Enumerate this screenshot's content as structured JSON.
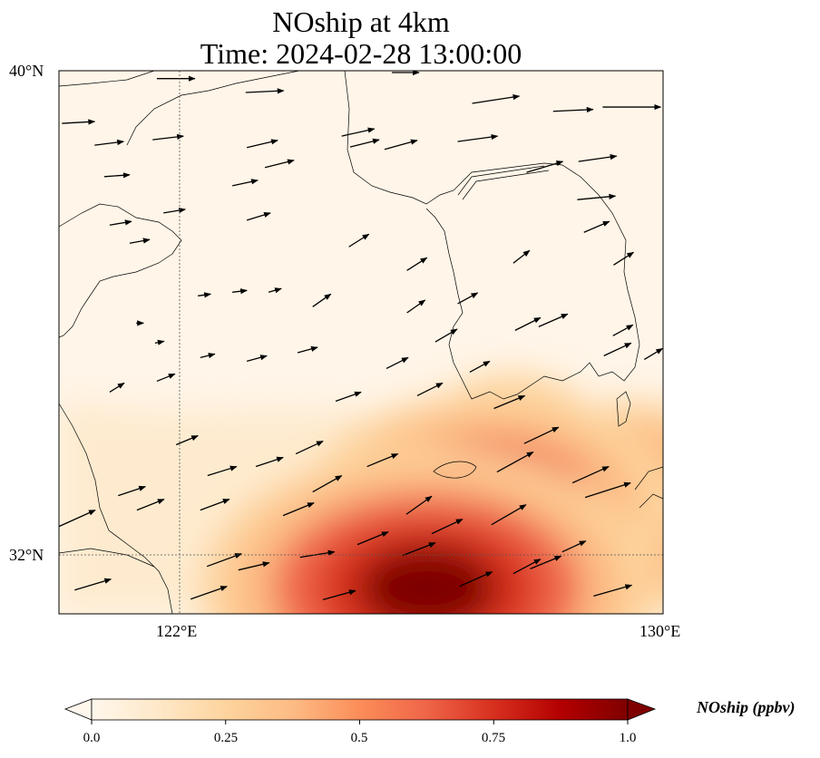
{
  "title_line1": "NOship at 4km",
  "title_line2": "Time: 2024-02-28 13:00:00",
  "chart_data": {
    "type": "heatmap",
    "variable": "NOship",
    "units": "ppbv",
    "extent": {
      "lon": [
        120,
        130
      ],
      "lat": [
        31.03,
        40
      ]
    },
    "lat_ticks": [
      {
        "value": 40,
        "label": "40°N"
      },
      {
        "value": 32,
        "label": "32°N"
      }
    ],
    "lon_ticks": [
      {
        "value": 122,
        "label": "122°E"
      },
      {
        "value": 130,
        "label": "130°E"
      }
    ],
    "gridlines": {
      "lon": [
        122
      ],
      "lat": [
        32
      ]
    },
    "colorbar": {
      "label": "NOship (ppbv)",
      "range": [
        0.0,
        1.0
      ],
      "ticks": [
        {
          "value": 0.0,
          "label": "0.0"
        },
        {
          "value": 0.25,
          "label": "0.25"
        },
        {
          "value": 0.5,
          "label": "0.5"
        },
        {
          "value": 0.75,
          "label": "0.75"
        },
        {
          "value": 1.0,
          "label": "1.0"
        }
      ],
      "colors": [
        "#fff7ec",
        "#fee8c8",
        "#fdd49e",
        "#fdbb84",
        "#fc8d59",
        "#ef6548",
        "#d7301f",
        "#b30000",
        "#7f0000"
      ],
      "extend": "both"
    },
    "field_hotspots": [
      {
        "lon": 126.1,
        "lat": 31.45,
        "value": 1.0
      },
      {
        "lon": 127.1,
        "lat": 32.8,
        "value": 0.8
      },
      {
        "lon": 128.6,
        "lat": 32.2,
        "value": 0.6
      },
      {
        "lon": 129.5,
        "lat": 33.4,
        "value": 0.45
      },
      {
        "lon": 124.6,
        "lat": 31.6,
        "value": 0.55
      },
      {
        "lon": 127.5,
        "lat": 34.2,
        "value": 0.3
      }
    ],
    "wind_vectors_fields": [
      "lon",
      "lat",
      "u",
      "v"
    ],
    "wind_vectors": [
      [
        120.05,
        39.13,
        9,
        0.5
      ],
      [
        120.59,
        38.77,
        8,
        1
      ],
      [
        120.75,
        38.25,
        7,
        0.5
      ],
      [
        120.84,
        37.45,
        6,
        1
      ],
      [
        121.17,
        37.15,
        5.5,
        1
      ],
      [
        121.62,
        39.87,
        10.5,
        0
      ],
      [
        121.55,
        38.86,
        8.5,
        1
      ],
      [
        121.73,
        37.65,
        6,
        1
      ],
      [
        123.09,
        39.64,
        10.5,
        0.5
      ],
      [
        123.11,
        38.73,
        8.5,
        2
      ],
      [
        123.41,
        38.4,
        8,
        2
      ],
      [
        122.87,
        38.1,
        7,
        1.5
      ],
      [
        123.11,
        37.53,
        6.5,
        2
      ],
      [
        124.68,
        38.92,
        9,
        2
      ],
      [
        124.82,
        38.74,
        8,
        2
      ],
      [
        125.39,
        38.7,
        9,
        2.5
      ],
      [
        125.51,
        39.97,
        7.5,
        0
      ],
      [
        126.6,
        38.83,
        11,
        1.5
      ],
      [
        126.84,
        39.46,
        13,
        2
      ],
      [
        128.18,
        39.33,
        11,
        0.5
      ],
      [
        129.0,
        39.4,
        16,
        0
      ],
      [
        128.6,
        38.5,
        10.5,
        1.5
      ],
      [
        128.58,
        37.87,
        10.5,
        1
      ],
      [
        128.69,
        37.33,
        7,
        3
      ],
      [
        129.18,
        36.79,
        5.5,
        3.5
      ],
      [
        127.74,
        38.32,
        10,
        3
      ],
      [
        124.8,
        37.09,
        5.5,
        3.5
      ],
      [
        125.76,
        36.7,
        5.5,
        3.5
      ],
      [
        127.52,
        36.82,
        4.5,
        3.5
      ],
      [
        122.3,
        36.28,
        3.5,
        0.5
      ],
      [
        122.87,
        36.34,
        4,
        0.5
      ],
      [
        123.47,
        36.34,
        3.5,
        1
      ],
      [
        124.2,
        36.1,
        5,
        3.5
      ],
      [
        125.76,
        36.0,
        5,
        3.5
      ],
      [
        126.6,
        36.15,
        5.5,
        3
      ],
      [
        127.55,
        35.71,
        7,
        3.5
      ],
      [
        127.94,
        35.77,
        8,
        3.5
      ],
      [
        129.17,
        35.62,
        5.5,
        3
      ],
      [
        129.02,
        35.29,
        7.5,
        3.5
      ],
      [
        129.69,
        35.23,
        5,
        3
      ],
      [
        121.28,
        35.83,
        2,
        0
      ],
      [
        121.59,
        35.5,
        2.5,
        0.5
      ],
      [
        122.34,
        35.26,
        4,
        1
      ],
      [
        123.11,
        35.2,
        5.5,
        1.5
      ],
      [
        123.95,
        35.34,
        5.5,
        1.5
      ],
      [
        120.84,
        34.69,
        4,
        2.5
      ],
      [
        121.62,
        34.87,
        5,
        2
      ],
      [
        124.58,
        34.54,
        7,
        2.5
      ],
      [
        125.42,
        35.08,
        6,
        3
      ],
      [
        126.23,
        35.52,
        6,
        3.5
      ],
      [
        126.8,
        35.02,
        5.5,
        3
      ],
      [
        125.93,
        34.63,
        7,
        3.5
      ],
      [
        127.2,
        34.42,
        8.5,
        3.5
      ],
      [
        121.94,
        33.82,
        6,
        2.5
      ],
      [
        122.46,
        33.31,
        8,
        2.5
      ],
      [
        123.26,
        33.46,
        7.5,
        2.5
      ],
      [
        123.92,
        33.67,
        7.5,
        3.5
      ],
      [
        120.98,
        32.98,
        7.5,
        2.5
      ],
      [
        121.29,
        32.74,
        7.5,
        3
      ],
      [
        122.34,
        32.74,
        8,
        3
      ],
      [
        123.71,
        32.65,
        8.5,
        3.5
      ],
      [
        124.2,
        33.04,
        8,
        4.5
      ],
      [
        125.75,
        32.67,
        7,
        5
      ],
      [
        125.1,
        33.46,
        8.5,
        3.5
      ],
      [
        127.25,
        33.37,
        10,
        5.5
      ],
      [
        127.7,
        33.84,
        9.5,
        4.5
      ],
      [
        127.16,
        32.5,
        9.5,
        5.5
      ],
      [
        126.17,
        32.35,
        8.5,
        4
      ],
      [
        128.5,
        33.19,
        10,
        4.5
      ],
      [
        128.71,
        32.95,
        12.5,
        4
      ],
      [
        120.0,
        32.47,
        10,
        4.5
      ],
      [
        120.26,
        31.42,
        10,
        3
      ],
      [
        122.45,
        31.81,
        9.5,
        3.5
      ],
      [
        122.97,
        31.75,
        8.5,
        2
      ],
      [
        123.99,
        31.96,
        9.5,
        1.5
      ],
      [
        124.94,
        32.17,
        8.5,
        3.5
      ],
      [
        125.69,
        31.99,
        9,
        3.5
      ],
      [
        126.63,
        31.48,
        9,
        4
      ],
      [
        127.52,
        31.69,
        7.5,
        4
      ],
      [
        127.8,
        31.77,
        8.5,
        3.5
      ],
      [
        128.33,
        32.05,
        6.5,
        3
      ],
      [
        128.85,
        31.32,
        10.5,
        3
      ],
      [
        122.18,
        31.27,
        10,
        3.5
      ],
      [
        124.37,
        31.26,
        9,
        2.5
      ]
    ]
  }
}
